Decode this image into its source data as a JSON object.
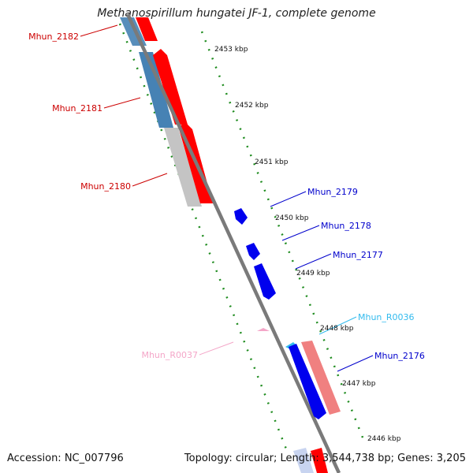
{
  "title": "Methanospirillum hungatei JF-1, complete genome",
  "accession": "Accession: NC_007796",
  "summary": "Topology: circular; Length: 3,544,738 bp; Genes: 3,205",
  "colors": {
    "backbone": "#7a7a7a",
    "ticks": "#1f8c1f",
    "forward_cds": "#ff0000",
    "forward_cds_light": "#f08080",
    "reverse_cds": "#0000ee",
    "reverse_cds_steel": "#4682b4",
    "pseudo": "#bdbdbd",
    "rna_light_blue": "#33bbee",
    "rna_pink": "#f4a6c8"
  },
  "scale_labels": [
    "2453 kbp",
    "2452 kbp",
    "2451 kbp",
    "2450 kbp",
    "2449 kbp",
    "2448 kbp",
    "2447 kbp",
    "2446 kbp"
  ],
  "genes": [
    {
      "name": "Mhun_2182",
      "color": "#cc0000"
    },
    {
      "name": "Mhun_2181",
      "color": "#cc0000"
    },
    {
      "name": "Mhun_2180",
      "color": "#cc0000"
    },
    {
      "name": "Mhun_2179",
      "color": "#0000cc"
    },
    {
      "name": "Mhun_2178",
      "color": "#0000cc"
    },
    {
      "name": "Mhun_2177",
      "color": "#0000cc"
    },
    {
      "name": "Mhun_R0036",
      "color": "#33bbee"
    },
    {
      "name": "Mhun_R0037",
      "color": "#f4a6c8"
    },
    {
      "name": "Mhun_2176",
      "color": "#0000cc"
    }
  ]
}
